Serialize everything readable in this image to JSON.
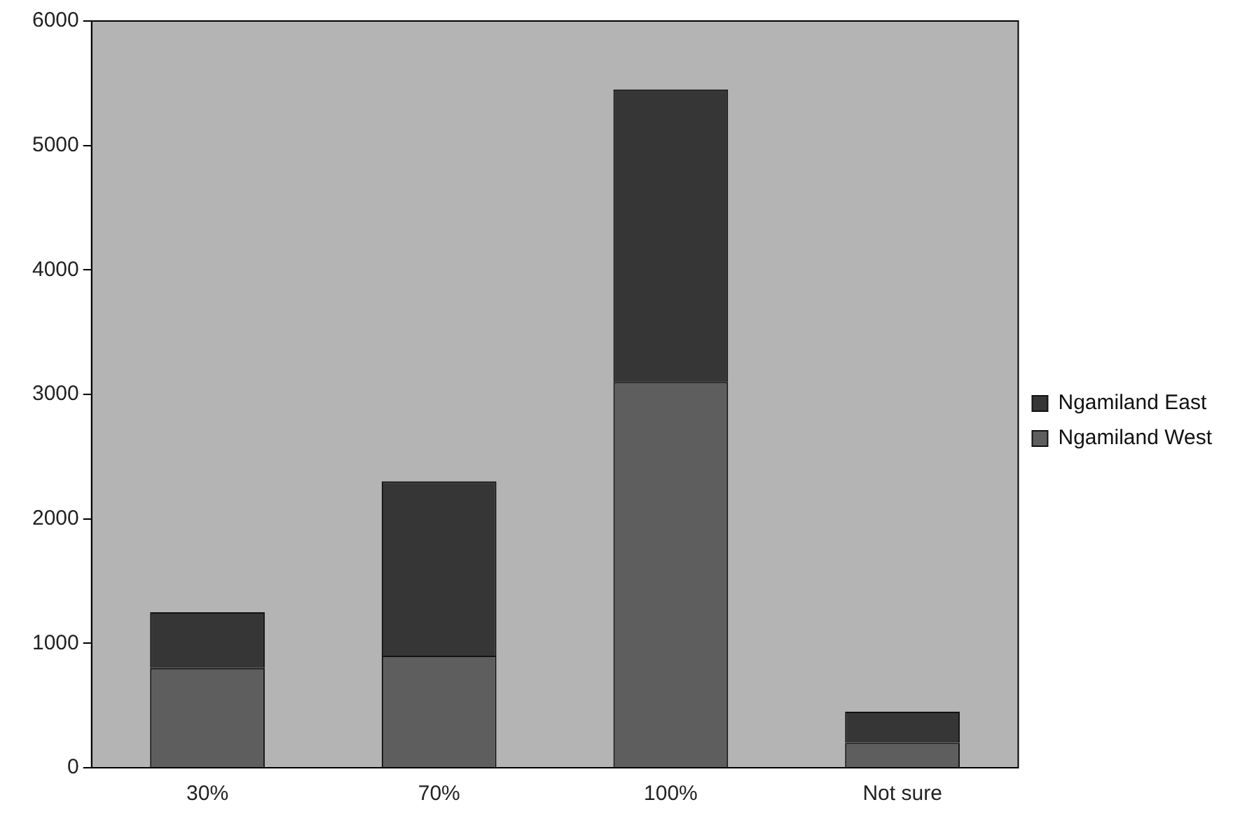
{
  "chart_data": {
    "type": "bar",
    "stacked": true,
    "categories": [
      "30%",
      "70%",
      "100%",
      "Not sure"
    ],
    "series": [
      {
        "name": "Ngamiland West",
        "color": "#5e5e5e",
        "values": [
          800,
          900,
          3100,
          200
        ]
      },
      {
        "name": "Ngamiland East",
        "color": "#363636",
        "values": [
          450,
          1400,
          2350,
          250
        ]
      }
    ],
    "ylim": [
      0,
      6000
    ],
    "yticks": [
      0,
      1000,
      2000,
      3000,
      4000,
      5000,
      6000
    ],
    "grid": false,
    "legend": "right"
  }
}
